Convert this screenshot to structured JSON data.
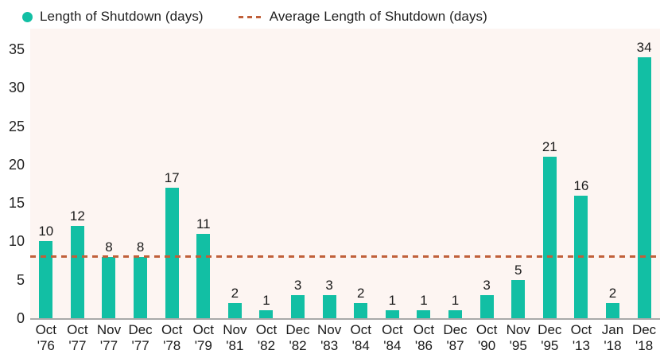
{
  "legend": {
    "series_label": "Length of Shutdown (days)",
    "average_label": "Average Length of Shutdown (days)"
  },
  "chart_data": {
    "type": "bar",
    "title": "",
    "xlabel": "",
    "ylabel": "",
    "categories": [
      {
        "month": "Oct",
        "year": "'76"
      },
      {
        "month": "Oct",
        "year": "'77"
      },
      {
        "month": "Nov",
        "year": "'77"
      },
      {
        "month": "Dec",
        "year": "'77"
      },
      {
        "month": "Oct",
        "year": "'78"
      },
      {
        "month": "Oct",
        "year": "'79"
      },
      {
        "month": "Nov",
        "year": "'81"
      },
      {
        "month": "Oct",
        "year": "'82"
      },
      {
        "month": "Dec",
        "year": "'82"
      },
      {
        "month": "Nov",
        "year": "'83"
      },
      {
        "month": "Oct",
        "year": "'84"
      },
      {
        "month": "Oct",
        "year": "'84"
      },
      {
        "month": "Oct",
        "year": "'86"
      },
      {
        "month": "Dec",
        "year": "'87"
      },
      {
        "month": "Oct",
        "year": "'90"
      },
      {
        "month": "Nov",
        "year": "'95"
      },
      {
        "month": "Dec",
        "year": "'95"
      },
      {
        "month": "Oct",
        "year": "'13"
      },
      {
        "month": "Jan",
        "year": "'18"
      },
      {
        "month": "Dec",
        "year": "'18"
      }
    ],
    "values": [
      10,
      12,
      8,
      8,
      17,
      11,
      2,
      1,
      3,
      3,
      2,
      1,
      1,
      1,
      3,
      5,
      21,
      16,
      2,
      34
    ],
    "average_value": 8,
    "y_ticks": [
      0,
      5,
      10,
      15,
      20,
      25,
      30,
      35
    ],
    "ylim": [
      0,
      37.7
    ],
    "grid": false,
    "legend_position": "top"
  },
  "colors": {
    "bar": "#12bfa4",
    "average_line": "#c0603a",
    "plot_background": "#fdf5f2",
    "axis_line": "#a9a9a9",
    "text": "#1f1f1f"
  }
}
